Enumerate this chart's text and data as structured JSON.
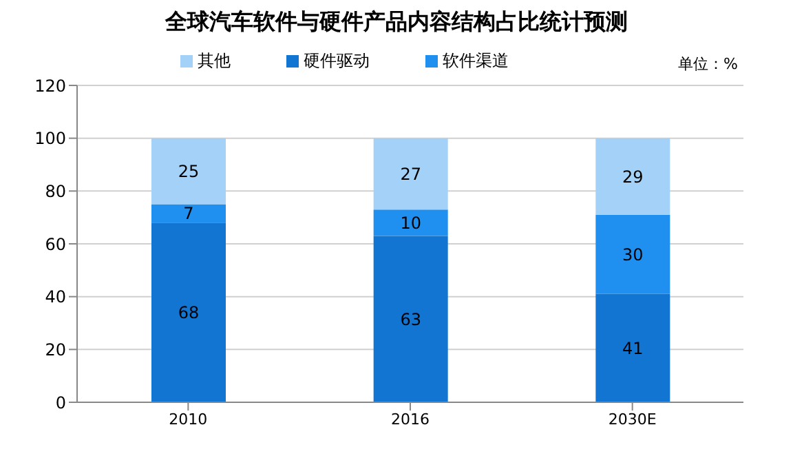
{
  "chart_data": {
    "type": "bar",
    "title": "全球汽车软件与硬件产品内容结构占比统计预测",
    "categories": [
      "2010",
      "2016",
      "2030E"
    ],
    "stacked": true,
    "series": [
      {
        "name": "硬件驱动",
        "color": "#1275d1",
        "values": [
          68,
          63,
          41
        ]
      },
      {
        "name": "软件渠道",
        "color": "#1f8ff0",
        "values": [
          7,
          10,
          30
        ]
      },
      {
        "name": "其他",
        "color": "#a3d1f7",
        "values": [
          25,
          27,
          29
        ]
      }
    ],
    "ylim": [
      0,
      120
    ],
    "yticks": [
      0,
      20,
      40,
      60,
      80,
      100,
      120
    ],
    "grid": "y",
    "legend": "top",
    "data_labels": true,
    "annotations": [
      "单位：%"
    ]
  }
}
